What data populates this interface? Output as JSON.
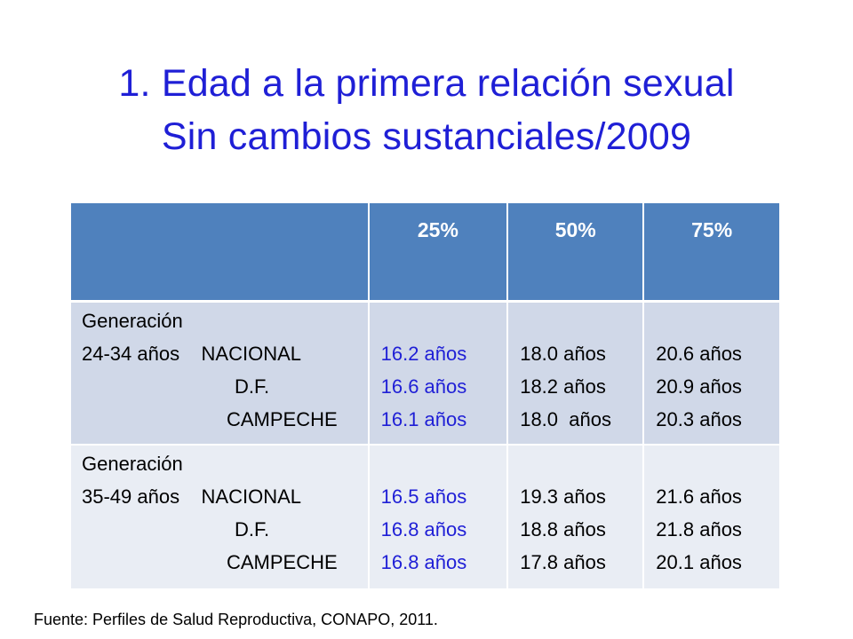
{
  "title": {
    "line1": "1. Edad a la primera relación sexual",
    "line2": "Sin cambios sustanciales/2009"
  },
  "table": {
    "headers": [
      "",
      "25%",
      "50%",
      "75%"
    ],
    "rows": [
      {
        "group_label": "Generación",
        "age_range": "24-34 años",
        "regions": [
          "NACIONAL",
          "D.F.",
          "CAMPECHE"
        ],
        "p25": [
          "16.2 años",
          "16.6 años",
          "16.1 años"
        ],
        "p50": [
          "18.0 años",
          "18.2 años",
          "18.0  años"
        ],
        "p75": [
          "20.6 años",
          "20.9 años",
          "20.3 años"
        ]
      },
      {
        "group_label": "Generación",
        "age_range": "35-49 años",
        "regions": [
          "NACIONAL",
          "D.F.",
          "CAMPECHE"
        ],
        "p25": [
          "16.5 años",
          "16.8 años",
          "16.8 años"
        ],
        "p50": [
          "19.3 años",
          "18.8 años",
          "17.8 años"
        ],
        "p75": [
          "21.6 años",
          "21.8 años",
          "20.1 años"
        ]
      }
    ]
  },
  "source": "Fuente: Perfiles de Salud Reproductiva, CONAPO, 2011.",
  "colors": {
    "title": "#1f1fd6",
    "header_bg": "#4f81bd",
    "row1_bg": "#d0d8e8",
    "row2_bg": "#e9edf4",
    "p25_text": "#1f1fd6"
  }
}
